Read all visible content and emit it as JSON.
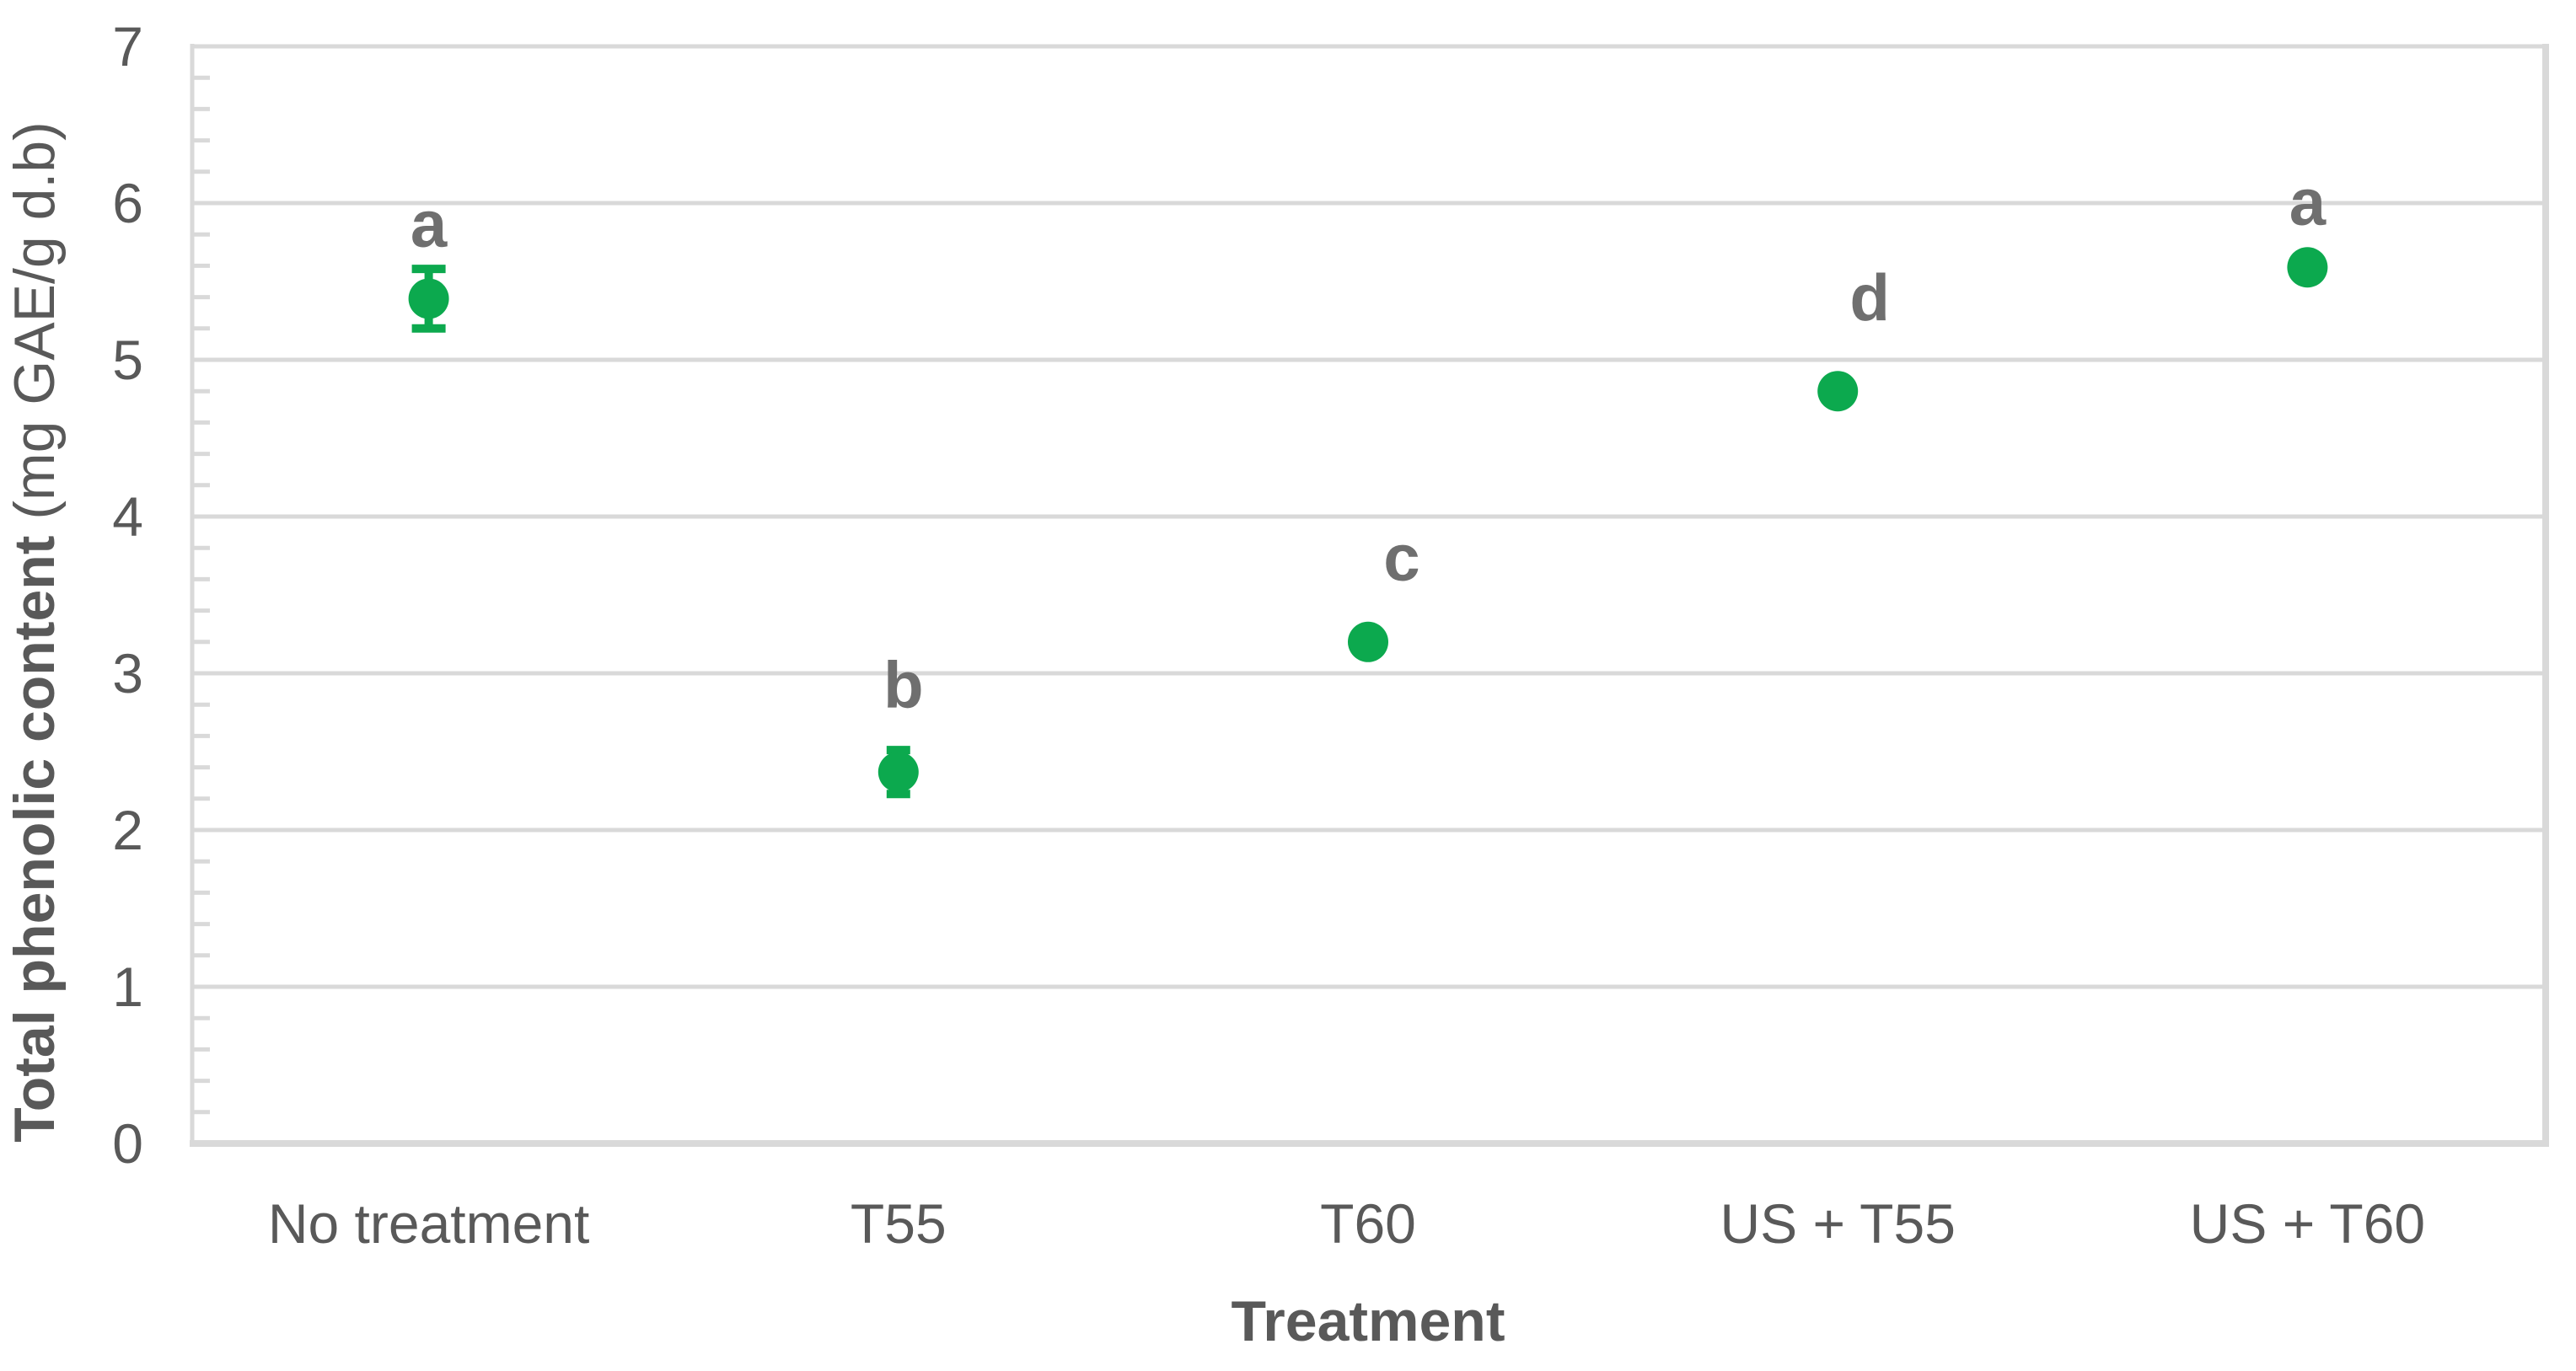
{
  "chart_data": {
    "type": "scatter",
    "title": "",
    "xlabel": "Treatment",
    "ylabel_bold": "Total phenolic content",
    "ylabel_units": " (mg GAE/g d.b)",
    "categories": [
      "No treatment",
      "T55",
      "T60",
      "US + T55",
      "US + T60"
    ],
    "values": [
      5.39,
      2.37,
      3.2,
      4.8,
      5.59
    ],
    "error_bars": [
      0.19,
      0.14,
      0,
      0,
      0
    ],
    "significance_letters": [
      {
        "text": "a",
        "dx": 0,
        "y": 5.87
      },
      {
        "text": "b",
        "dx": 6,
        "y": 2.93
      },
      {
        "text": "c",
        "dx": 40,
        "y": 3.74
      },
      {
        "text": "d",
        "dx": 38,
        "y": 5.4
      },
      {
        "text": "a",
        "dx": 0,
        "y": 6.01
      }
    ],
    "ylim": [
      0,
      7
    ],
    "y_major_step": 1,
    "y_minor_step": 0.2,
    "y_tick_labels": [
      "0",
      "1",
      "2",
      "3",
      "4",
      "5",
      "6",
      "7"
    ],
    "grid": "horizontal-major",
    "legend": "none",
    "colors": {
      "marker": "#0CA94E",
      "gridline": "#D9D9D9",
      "axis_line": "#D9D9D9",
      "tick_label": "#595959",
      "axis_title": "#595959",
      "letter": "#6F6F6F",
      "background": "#FFFFFF"
    }
  }
}
